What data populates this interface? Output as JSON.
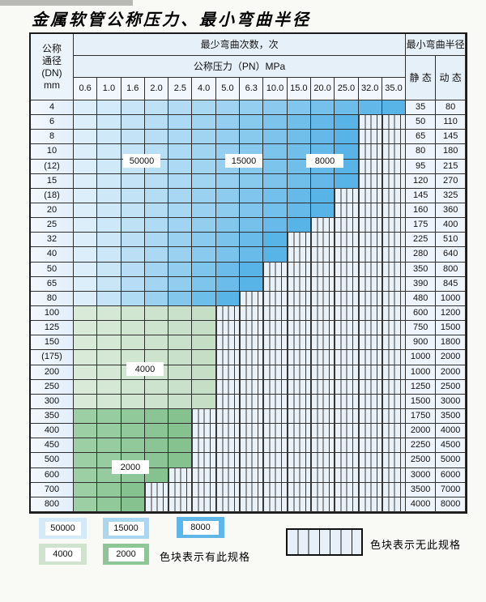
{
  "title": "金属软管公称压力、最小弯曲半径",
  "header": {
    "dn_lines": [
      "公称",
      "通径",
      "(DN)",
      "mm"
    ],
    "bend_times": "最少弯曲次数，次",
    "pressure_title": "公称压力（PN）MPa",
    "pressure_values": [
      "0.6",
      "1.0",
      "1.6",
      "2.0",
      "2.5",
      "4.0",
      "5.0",
      "6.3",
      "10.0",
      "15.0",
      "20.0",
      "25.0",
      "32.0",
      "35.0"
    ],
    "bend_radius": "最小弯曲半径",
    "static_label": "静 态",
    "dynamic_label": "动 态"
  },
  "rows": [
    {
      "dn": "4",
      "colored_columns": 14,
      "region": "blue",
      "static": "35",
      "dynamic": "80"
    },
    {
      "dn": "6",
      "colored_columns": 12,
      "region": "blue",
      "static": "50",
      "dynamic": "110"
    },
    {
      "dn": "8",
      "colored_columns": 12,
      "region": "blue",
      "static": "65",
      "dynamic": "145"
    },
    {
      "dn": "10",
      "colored_columns": 12,
      "region": "blue",
      "static": "80",
      "dynamic": "180"
    },
    {
      "dn": "(12)",
      "colored_columns": 12,
      "region": "blue",
      "static": "95",
      "dynamic": "215"
    },
    {
      "dn": "15",
      "colored_columns": 12,
      "region": "blue",
      "static": "120",
      "dynamic": "270"
    },
    {
      "dn": "(18)",
      "colored_columns": 11,
      "region": "blue",
      "static": "145",
      "dynamic": "325"
    },
    {
      "dn": "20",
      "colored_columns": 11,
      "region": "blue",
      "static": "160",
      "dynamic": "360"
    },
    {
      "dn": "25",
      "colored_columns": 10,
      "region": "blue",
      "static": "175",
      "dynamic": "400"
    },
    {
      "dn": "32",
      "colored_columns": 9,
      "region": "blue",
      "static": "225",
      "dynamic": "510"
    },
    {
      "dn": "40",
      "colored_columns": 9,
      "region": "blue",
      "static": "280",
      "dynamic": "640"
    },
    {
      "dn": "50",
      "colored_columns": 8,
      "region": "blue",
      "static": "350",
      "dynamic": "800"
    },
    {
      "dn": "65",
      "colored_columns": 8,
      "region": "blue",
      "static": "390",
      "dynamic": "845"
    },
    {
      "dn": "80",
      "colored_columns": 7,
      "region": "blue",
      "static": "480",
      "dynamic": "1000"
    },
    {
      "dn": "100",
      "colored_columns": 6,
      "region": "green-light",
      "static": "600",
      "dynamic": "1200"
    },
    {
      "dn": "125",
      "colored_columns": 6,
      "region": "green-light",
      "static": "750",
      "dynamic": "1500"
    },
    {
      "dn": "150",
      "colored_columns": 6,
      "region": "green-light",
      "static": "900",
      "dynamic": "1800"
    },
    {
      "dn": "(175)",
      "colored_columns": 6,
      "region": "green-light",
      "static": "1000",
      "dynamic": "2000"
    },
    {
      "dn": "200",
      "colored_columns": 6,
      "region": "green-light",
      "static": "1000",
      "dynamic": "2000"
    },
    {
      "dn": "250",
      "colored_columns": 6,
      "region": "green-light",
      "static": "1250",
      "dynamic": "2500"
    },
    {
      "dn": "300",
      "colored_columns": 6,
      "region": "green-light",
      "static": "1500",
      "dynamic": "3000"
    },
    {
      "dn": "350",
      "colored_columns": 5,
      "region": "green-dark",
      "static": "1750",
      "dynamic": "3500"
    },
    {
      "dn": "400",
      "colored_columns": 5,
      "region": "green-dark",
      "static": "2000",
      "dynamic": "4000"
    },
    {
      "dn": "450",
      "colored_columns": 5,
      "region": "green-dark",
      "static": "2250",
      "dynamic": "4500"
    },
    {
      "dn": "500",
      "colored_columns": 5,
      "region": "green-dark",
      "static": "2500",
      "dynamic": "5000"
    },
    {
      "dn": "600",
      "colored_columns": 4,
      "region": "green-dark",
      "static": "3000",
      "dynamic": "6000"
    },
    {
      "dn": "700",
      "colored_columns": 3,
      "region": "green-dark",
      "static": "3500",
      "dynamic": "7000"
    },
    {
      "dn": "800",
      "colored_columns": 3,
      "region": "green-dark",
      "static": "4000",
      "dynamic": "8000"
    }
  ],
  "region_labels": [
    {
      "text": "50000"
    },
    {
      "text": "15000"
    },
    {
      "text": "8000"
    },
    {
      "text": "4000"
    },
    {
      "text": "2000"
    }
  ],
  "legend": {
    "items": [
      {
        "label": "50000",
        "color": "#d5eaf8"
      },
      {
        "label": "15000",
        "color": "#a9d6f1"
      },
      {
        "label": "8000",
        "color": "#5fb6e7"
      },
      {
        "label": "4000",
        "color": "#cfe3cf"
      },
      {
        "label": "2000",
        "color": "#8cc795"
      }
    ],
    "has_spec_note": "色块表示有此规格",
    "no_spec_note": "色块表示无此规格"
  },
  "colors": {
    "blue_light": "#dceefa",
    "blue_dark": "#58b4e7",
    "green_light_a": "#d9ead8",
    "green_light_b": "#c5dfc7",
    "green_dark_a": "#9dcfa5",
    "green_dark_b": "#85c290"
  }
}
